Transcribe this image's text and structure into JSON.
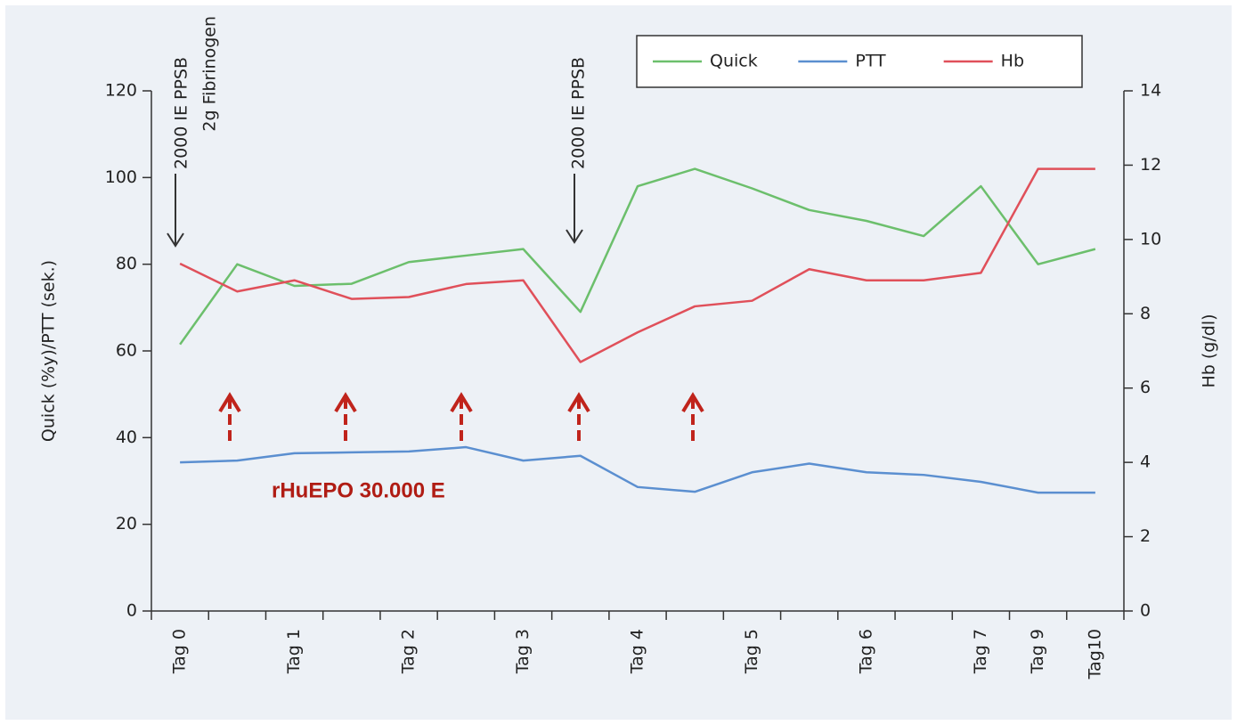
{
  "chart_data": {
    "type": "line",
    "categories": [
      "Tag 0",
      null,
      "Tag 1",
      null,
      "Tag 2",
      null,
      "Tag 3",
      null,
      "Tag 4",
      null,
      "Tag 5",
      null,
      "Tag 6",
      null,
      "Tag 7",
      "Tag 9",
      "Tag10"
    ],
    "series": [
      {
        "name": "Quick",
        "color": "#6cbf6c",
        "values": [
          61.5,
          80,
          75,
          75.5,
          80.5,
          82,
          83.5,
          69,
          98,
          102,
          97.5,
          92.5,
          90,
          86.5,
          98,
          80,
          83.5
        ]
      },
      {
        "name": "PTT",
        "color": "#5b8fd0",
        "values": [
          34.3,
          34.7,
          36.4,
          36.6,
          36.8,
          37.8,
          34.7,
          35.8,
          28.6,
          27.5,
          32,
          34,
          32,
          31.4,
          29.8,
          27.3,
          27.3
        ]
      },
      {
        "name": "Hb",
        "color": "#e0505a",
        "axis": "y2",
        "values": [
          9.35,
          8.6,
          8.9,
          8.4,
          8.45,
          8.8,
          8.9,
          6.7,
          7.5,
          8.2,
          8.35,
          9.2,
          8.9,
          8.9,
          9.1,
          11.9,
          11.9
        ]
      }
    ],
    "ylabel": "Quick (%y)/PTT (sek.)",
    "y2label": "Hb (g/dl)",
    "ylim": [
      0,
      120
    ],
    "yticks": [
      0,
      20,
      40,
      60,
      80,
      100,
      120
    ],
    "y2lim": [
      0,
      14
    ],
    "y2ticks": [
      0,
      2,
      4,
      6,
      8,
      10,
      12,
      14
    ],
    "annotations": [
      "2000 IE PPSB",
      "2g Fibrinogen",
      "2000 IE PPSB",
      "rHuEPO 30.000 E"
    ],
    "legend": "top right"
  }
}
